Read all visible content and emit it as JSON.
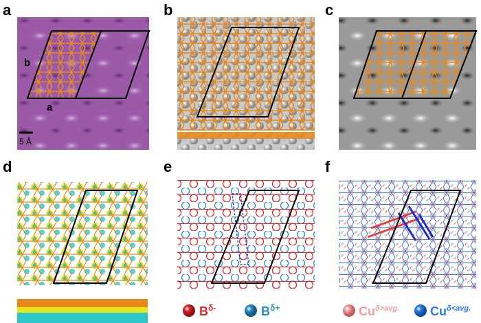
{
  "panels": [
    {
      "label": "a",
      "lattice_labels": [
        "b",
        "a"
      ],
      "scale_bar": "5 Å"
    },
    {
      "label": "b"
    },
    {
      "label": "c"
    },
    {
      "label": "d"
    },
    {
      "label": "e"
    },
    {
      "label": "f"
    }
  ],
  "legend": [
    {
      "element": "B",
      "charge": "δ-",
      "color": "#e0262a"
    },
    {
      "element": "B",
      "charge": "δ+",
      "color": "#2b8fc6"
    },
    {
      "element": "Cu",
      "charge": "δ>avg.",
      "color": "#f0a0a0"
    },
    {
      "element": "Cu",
      "charge": "δ<avg.",
      "color": "#2a7fe0"
    }
  ]
}
